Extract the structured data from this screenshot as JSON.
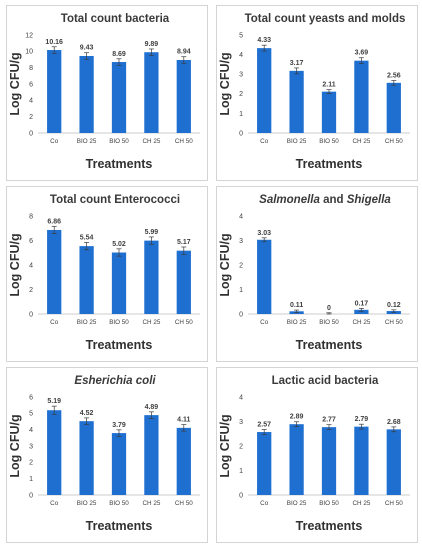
{
  "chart_data": [
    {
      "type": "bar",
      "title": "Total count  bacteria",
      "xlabel": "Treatments",
      "ylabel": "Log CFU/g",
      "ylim": [
        0,
        12
      ],
      "yticks": [
        "0",
        "2",
        "4",
        "6",
        "8",
        "10",
        "12"
      ],
      "categories": [
        "Co",
        "BIO 25",
        "BIO 50",
        "CH 25",
        "CH 50"
      ],
      "values": [
        10.16,
        9.43,
        8.69,
        9.89,
        8.94
      ],
      "value_labels": [
        "10.16",
        "9.43",
        "8.69",
        "9.89",
        "8.94"
      ],
      "errors": [
        0.4,
        0.4,
        0.4,
        0.4,
        0.4
      ],
      "color": "#1f6fd1",
      "grid": false
    },
    {
      "type": "bar",
      "title": "Total count yeasts and molds",
      "xlabel": "Treatments",
      "ylabel": "Log CFU/g",
      "ylim": [
        0,
        5
      ],
      "yticks": [
        "0",
        "1",
        "2",
        "3",
        "4",
        "5"
      ],
      "categories": [
        "Co",
        "BIO 25",
        "BIO 50",
        "CH 25",
        "CH 50"
      ],
      "values": [
        4.33,
        3.17,
        2.11,
        3.69,
        2.56
      ],
      "value_labels": [
        "4.33",
        "3.17",
        "2.11",
        "3.69",
        "2.56"
      ],
      "errors": [
        0.15,
        0.15,
        0.1,
        0.15,
        0.12
      ],
      "color": "#1f6fd1",
      "grid": false
    },
    {
      "type": "bar",
      "title": "Total count Enterococci",
      "xlabel": "Treatments",
      "ylabel": "Log CFU/g",
      "ylim": [
        0,
        8
      ],
      "yticks": [
        "0",
        "2",
        "4",
        "6",
        "8"
      ],
      "categories": [
        "Co",
        "BIO 25",
        "BIO 50",
        "CH 25",
        "CH 50"
      ],
      "values": [
        6.86,
        5.54,
        5.02,
        5.99,
        5.17
      ],
      "value_labels": [
        "6.86",
        "5.54",
        "5.02",
        "5.99",
        "5.17"
      ],
      "errors": [
        0.3,
        0.3,
        0.3,
        0.3,
        0.3
      ],
      "color": "#1f6fd1",
      "grid": false
    },
    {
      "type": "bar",
      "title_parts": [
        {
          "text": "Salmonella",
          "italic": true
        },
        {
          "text": " and ",
          "italic": false
        },
        {
          "text": "Shigella",
          "italic": true
        }
      ],
      "xlabel": "Treatments",
      "ylabel": "Log CFU/g",
      "ylim": [
        0,
        4
      ],
      "yticks": [
        "0",
        "1",
        "2",
        "3",
        "4"
      ],
      "categories": [
        "Co",
        "BIO 25",
        "BIO 50",
        "CH 25",
        "CH 50"
      ],
      "values": [
        3.03,
        0.11,
        0,
        0.17,
        0.12
      ],
      "value_labels": [
        "3.03",
        "0.11",
        "0",
        "0.17",
        "0.12"
      ],
      "errors": [
        0.08,
        0.05,
        0.05,
        0.06,
        0.05
      ],
      "color": "#1f6fd1",
      "grid": false
    },
    {
      "type": "bar",
      "title": "Esherichia coli",
      "title_italic": true,
      "xlabel": "Treatments",
      "ylabel": "Log CFU/g",
      "ylim": [
        0,
        6
      ],
      "yticks": [
        "0",
        "1",
        "2",
        "3",
        "4",
        "5",
        "6"
      ],
      "categories": [
        "Co",
        "BIO 25",
        "BIO 50",
        "CH 25",
        "CH 50"
      ],
      "values": [
        5.19,
        4.52,
        3.79,
        4.89,
        4.11
      ],
      "value_labels": [
        "5.19",
        "4.52",
        "3.79",
        "4.89",
        "4.11"
      ],
      "errors": [
        0.25,
        0.2,
        0.2,
        0.2,
        0.2
      ],
      "color": "#1f6fd1",
      "grid": false
    },
    {
      "type": "bar",
      "title": "Lactic acid bacteria",
      "xlabel": "Treatments",
      "ylabel": "Log CFU/g",
      "ylim": [
        0,
        4
      ],
      "yticks": [
        "0",
        "1",
        "2",
        "3",
        "4"
      ],
      "categories": [
        "Co",
        "BIO 25",
        "BIO 50",
        "CH 25",
        "CH 50"
      ],
      "values": [
        2.57,
        2.89,
        2.77,
        2.79,
        2.68
      ],
      "value_labels": [
        "2.57",
        "2.89",
        "2.77",
        "2.79",
        "2.68"
      ],
      "errors": [
        0.1,
        0.1,
        0.1,
        0.1,
        0.1
      ],
      "color": "#1f6fd1",
      "grid": false
    }
  ]
}
